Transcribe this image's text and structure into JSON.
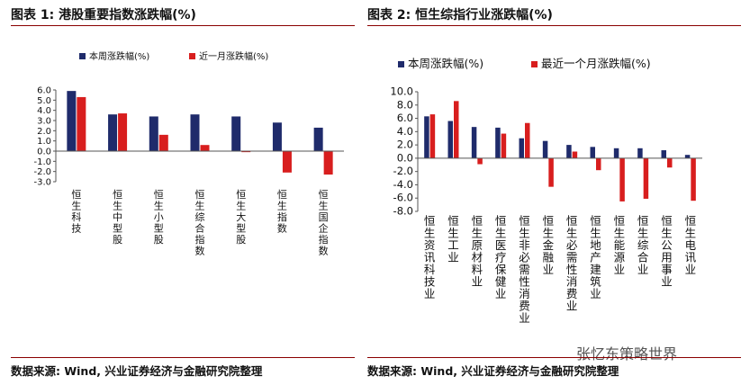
{
  "left": {
    "title": "图表 1:  港股重要指数涨跌幅(%)",
    "source": "数据来源:  Wind, 兴业证券经济与金融研究院整理"
  },
  "right": {
    "title": "图表 2:  恒生综指行业涨跌幅(%)",
    "source": "数据来源:  Wind, 兴业证券经济与金融研究院整理"
  },
  "watermark": "张忆东策略世界",
  "colors": {
    "series1": "#1f2b6b",
    "series2": "#d81e1e",
    "rule": "#8a0000"
  },
  "chart_data": [
    {
      "type": "bar",
      "categories": [
        "恒生科技",
        "恒生中型股",
        "恒生小型股",
        "恒生综合指数",
        "恒生大型股",
        "恒生指数",
        "恒生国企指数"
      ],
      "series": [
        {
          "name": "本周涨跌幅(%)",
          "values": [
            5.9,
            3.6,
            3.4,
            3.6,
            3.4,
            2.8,
            2.3
          ]
        },
        {
          "name": "近一月涨跌幅(%)",
          "values": [
            5.3,
            3.7,
            1.6,
            0.6,
            -0.1,
            -2.1,
            -2.3
          ]
        }
      ],
      "ylim": [
        -3.0,
        6.0
      ],
      "yticks": [
        "-3.0",
        "-2.0",
        "-1.0",
        "0.0",
        "1.0",
        "2.0",
        "3.0",
        "4.0",
        "5.0",
        "6.0"
      ],
      "legend": "top"
    },
    {
      "type": "bar",
      "categories": [
        "恒生资讯科技业",
        "恒生工业",
        "恒生原材料业",
        "恒生医疗保健业",
        "恒生非必需性消费业",
        "恒生金融业",
        "恒生必需性消费业",
        "恒生地产建筑业",
        "恒生能源业",
        "恒生综合业",
        "恒生公用事业",
        "恒生电讯业"
      ],
      "series": [
        {
          "name": "本周涨跌幅(%)",
          "values": [
            6.3,
            5.6,
            4.7,
            4.6,
            3.0,
            2.6,
            2.0,
            1.7,
            1.5,
            1.5,
            1.2,
            0.5
          ]
        },
        {
          "name": "最近一个月涨跌幅(%)",
          "values": [
            6.6,
            8.6,
            -0.9,
            3.7,
            5.3,
            -4.3,
            1.0,
            -1.8,
            -6.5,
            -6.1,
            -1.4,
            -6.4
          ]
        }
      ],
      "ylim": [
        -8.0,
        10.0
      ],
      "yticks": [
        "-8.0",
        "-6.0",
        "-4.0",
        "-2.0",
        "0.0",
        "2.0",
        "4.0",
        "6.0",
        "8.0",
        "10.0"
      ],
      "legend": "top"
    }
  ]
}
